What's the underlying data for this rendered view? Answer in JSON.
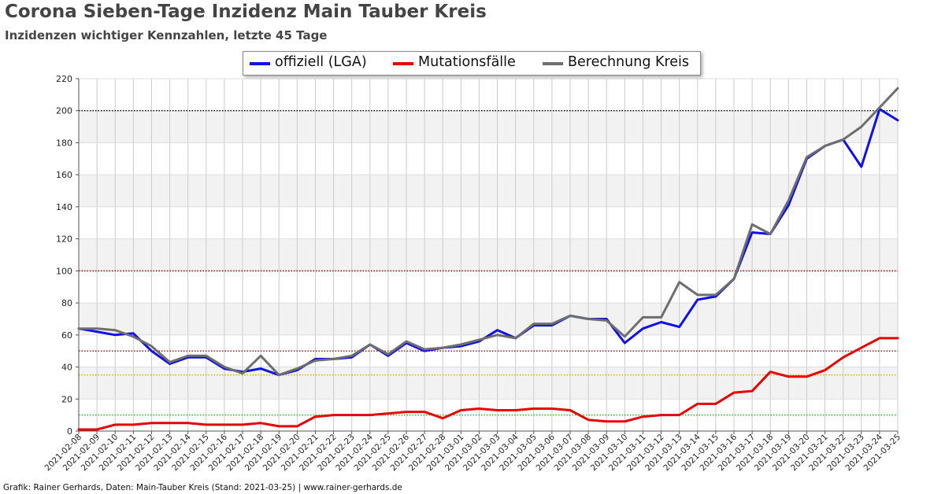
{
  "title": "Corona Sieben-Tage Inzidenz Main Tauber Kreis",
  "subtitle": "Inzidenzen wichtiger Kennzahlen, letzte 45 Tage",
  "footer": "Grafik: Rainer Gerhards, Daten: Main-Tauber Kreis (Stand: 2021-03-25) | www.rainer-gerhards.de",
  "colors": {
    "offiziell": "#1010e8",
    "mutation": "#e80000",
    "kreis": "#6e6e6e",
    "band": "#f2f2f2",
    "grid": "#cccccc",
    "ref_200": "#000000",
    "ref_100": "#b00000",
    "ref_50": "#b00000",
    "ref_35": "#e8a800",
    "ref_10": "#20c020"
  },
  "chart_data": {
    "type": "line",
    "title": "Corona Sieben-Tage Inzidenz Main Tauber Kreis",
    "subtitle": "Inzidenzen wichtiger Kennzahlen, letzte 45 Tage",
    "ylim": [
      0,
      220
    ],
    "yticks": [
      0,
      20,
      40,
      60,
      80,
      100,
      120,
      140,
      160,
      180,
      200,
      220
    ],
    "grid": true,
    "legend_position": "top-center",
    "x": [
      "2021-02-08",
      "2021-02-09",
      "2021-02-10",
      "2021-02-11",
      "2021-02-12",
      "2021-02-13",
      "2021-02-14",
      "2021-02-15",
      "2021-02-16",
      "2021-02-17",
      "2021-02-18",
      "2021-02-19",
      "2021-02-20",
      "2021-02-21",
      "2021-02-22",
      "2021-02-23",
      "2021-02-24",
      "2021-02-25",
      "2021-02-26",
      "2021-02-27",
      "2021-02-28",
      "2021-03-01",
      "2021-03-02",
      "2021-03-03",
      "2021-03-04",
      "2021-03-05",
      "2021-03-06",
      "2021-03-07",
      "2021-03-08",
      "2021-03-09",
      "2021-03-10",
      "2021-03-11",
      "2021-03-12",
      "2021-03-13",
      "2021-03-14",
      "2021-03-15",
      "2021-03-16",
      "2021-03-17",
      "2021-03-18",
      "2021-03-19",
      "2021-03-20",
      "2021-03-21",
      "2021-03-22",
      "2021-03-23",
      "2021-03-24",
      "2021-03-25"
    ],
    "reference_lines": [
      {
        "value": 200,
        "color_key": "ref_200"
      },
      {
        "value": 100,
        "color_key": "ref_100"
      },
      {
        "value": 50,
        "color_key": "ref_50"
      },
      {
        "value": 35,
        "color_key": "ref_35"
      },
      {
        "value": 10,
        "color_key": "ref_10"
      }
    ],
    "series": [
      {
        "name": "offiziell (LGA)",
        "color_key": "offiziell",
        "values": [
          64,
          62,
          60,
          61,
          50,
          42,
          46,
          46,
          39,
          37,
          39,
          35,
          38,
          45,
          45,
          46,
          54,
          47,
          55,
          50,
          52,
          53,
          56,
          63,
          58,
          66,
          66,
          72,
          70,
          70,
          55,
          64,
          68,
          65,
          82,
          84,
          95,
          124,
          123,
          141,
          170,
          178,
          182,
          165,
          201,
          194
        ]
      },
      {
        "name": "Mutationsfälle",
        "color_key": "mutation",
        "values": [
          1,
          1,
          4,
          4,
          5,
          5,
          5,
          4,
          4,
          4,
          5,
          3,
          3,
          9,
          10,
          10,
          10,
          11,
          12,
          12,
          8,
          13,
          14,
          13,
          13,
          14,
          14,
          13,
          7,
          6,
          6,
          9,
          10,
          10,
          17,
          17,
          24,
          25,
          37,
          34,
          34,
          38,
          46,
          52,
          58,
          58
        ]
      },
      {
        "name": "Berechnung Kreis",
        "color_key": "kreis",
        "values": [
          64,
          64,
          63,
          59,
          53,
          43,
          47,
          47,
          40,
          36,
          47,
          35,
          39,
          44,
          45,
          47,
          54,
          48,
          56,
          51,
          52,
          54,
          57,
          60,
          58,
          67,
          67,
          72,
          70,
          69,
          59,
          71,
          71,
          93,
          85,
          85,
          95,
          129,
          123,
          144,
          171,
          178,
          182,
          190,
          202,
          214
        ]
      }
    ]
  }
}
